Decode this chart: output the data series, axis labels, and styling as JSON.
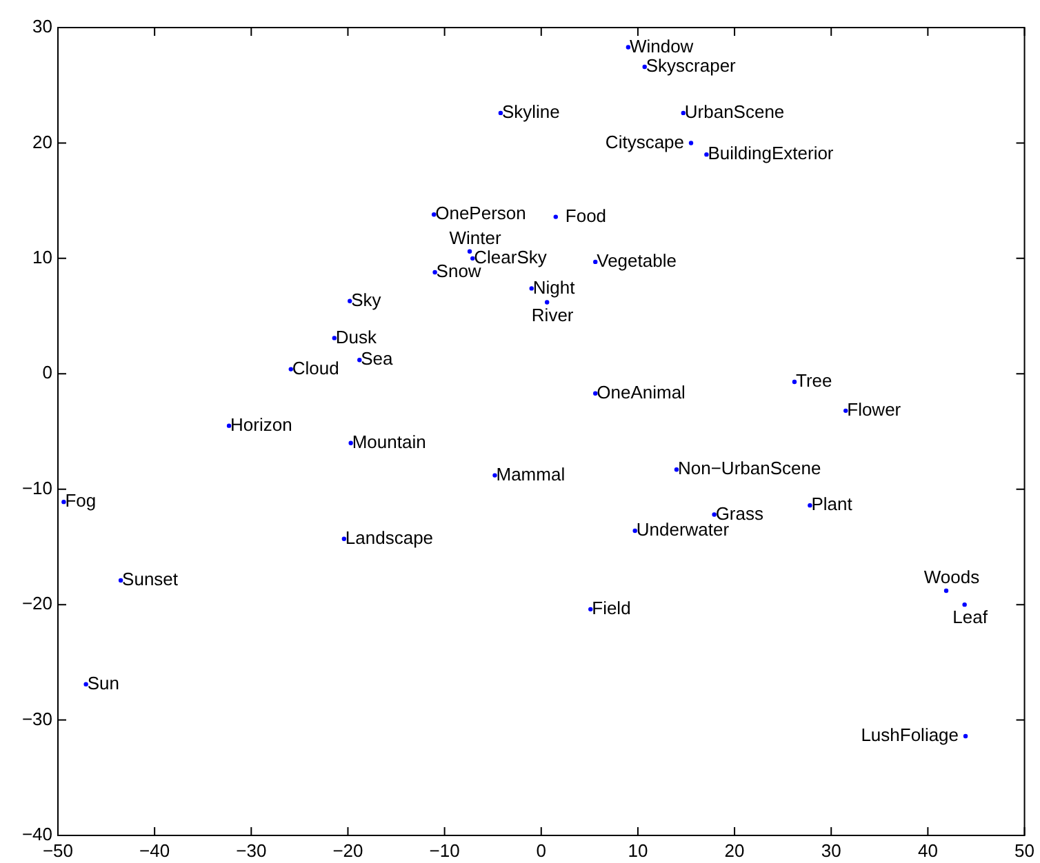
{
  "chart_data": {
    "type": "scatter",
    "marker": "circle",
    "x": [
      9.0,
      10.7,
      -4.2,
      14.7,
      15.5,
      17.1,
      -11.1,
      1.5,
      -7.4,
      -7.1,
      -11.0,
      5.6,
      -1.0,
      0.6,
      -19.8,
      -21.4,
      -18.8,
      -25.9,
      26.2,
      5.6,
      31.5,
      -32.3,
      -19.7,
      -4.8,
      14.0,
      -49.4,
      27.8,
      17.9,
      9.7,
      -20.4,
      -43.5,
      41.9,
      43.8,
      5.1,
      -47.1,
      43.9
    ],
    "series": [
      {
        "color": "#0000ff",
        "values": [
          28.3,
          26.6,
          22.6,
          22.6,
          20.0,
          19.0,
          13.8,
          13.6,
          10.6,
          10.0,
          8.8,
          9.7,
          7.4,
          6.2,
          6.3,
          3.1,
          1.2,
          0.4,
          -0.7,
          -1.7,
          -3.2,
          -4.5,
          -6.0,
          -8.8,
          -8.3,
          -11.1,
          -11.4,
          -12.2,
          -13.6,
          -14.3,
          -17.9,
          -18.8,
          -20.0,
          -20.4,
          -26.9,
          -31.4
        ],
        "value_labels": [
          "Window",
          "Skyscraper",
          "Skyline",
          "UrbanScene",
          "Cityscape",
          "BuildingExterior",
          "OnePerson",
          "Food",
          "Winter",
          "ClearSky",
          "Snow",
          "Vegetable",
          "Night",
          "River",
          "Sky",
          "Dusk",
          "Sea",
          "Cloud",
          "Tree",
          "OneAnimal",
          "Flower",
          "Horizon",
          "Mountain",
          "Mammal",
          "Non−UrbanScene",
          "Fog",
          "Plant",
          "Grass",
          "Underwater",
          "Landscape",
          "Sunset",
          "Woods",
          "Leaf",
          "Field",
          "Sun",
          "LushFoliage"
        ]
      }
    ],
    "xlim": [
      -50,
      50
    ],
    "xticks": [
      -50,
      -40,
      -30,
      -20,
      -10,
      0,
      10,
      20,
      30,
      40,
      50
    ],
    "ylim": [
      -40,
      30
    ],
    "yticks": [
      -40,
      -30,
      -20,
      -10,
      0,
      10,
      20,
      30
    ]
  }
}
